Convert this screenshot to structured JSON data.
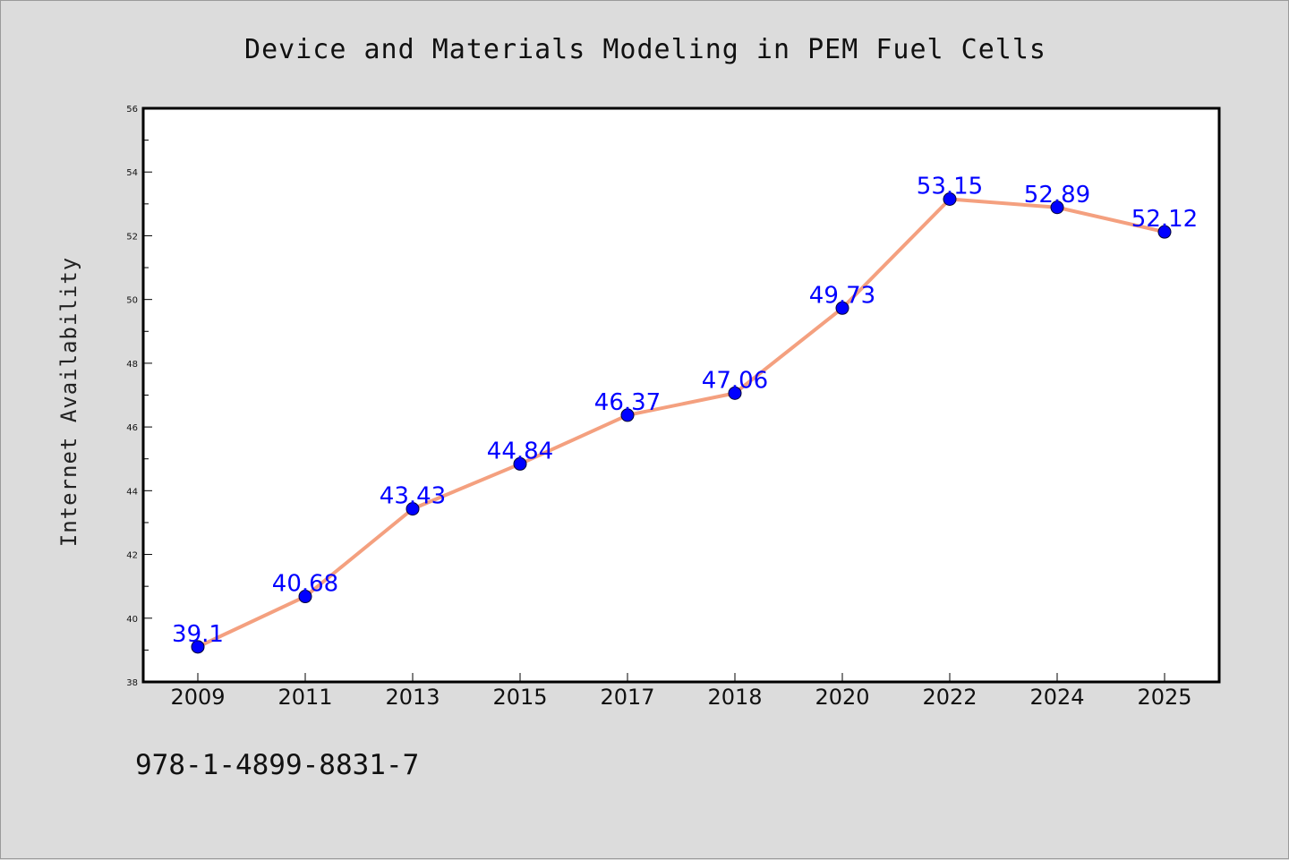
{
  "chart_data": {
    "type": "line",
    "title": "Device and Materials Modeling in PEM Fuel Cells",
    "xlabel": "",
    "ylabel": "Internet Availability",
    "categories": [
      "2009",
      "2011",
      "2013",
      "2015",
      "2017",
      "2018",
      "2020",
      "2022",
      "2024",
      "2025"
    ],
    "series": [
      {
        "values": [
          39.1,
          40.68,
          43.43,
          44.84,
          46.37,
          47.06,
          49.73,
          53.15,
          52.89,
          52.12
        ],
        "data_labels": [
          "39.1",
          "40.68",
          "43.43",
          "44.84",
          "46.37",
          "47.06",
          "49.73",
          "53.15",
          "52.89",
          "52.12"
        ],
        "line_color": "#f4a07f",
        "marker_color": "#0000ff"
      }
    ],
    "ylim": [
      38,
      56
    ],
    "yticks": [
      "38",
      "40",
      "42",
      "44",
      "46",
      "48",
      "50",
      "52",
      "54",
      "56"
    ],
    "grid": false,
    "legend": "none"
  },
  "footnote": "978-1-4899-8831-7",
  "colors": {
    "background": "#dcdcdc",
    "plot_background": "#ffffff",
    "data_label": "#0000ff"
  }
}
